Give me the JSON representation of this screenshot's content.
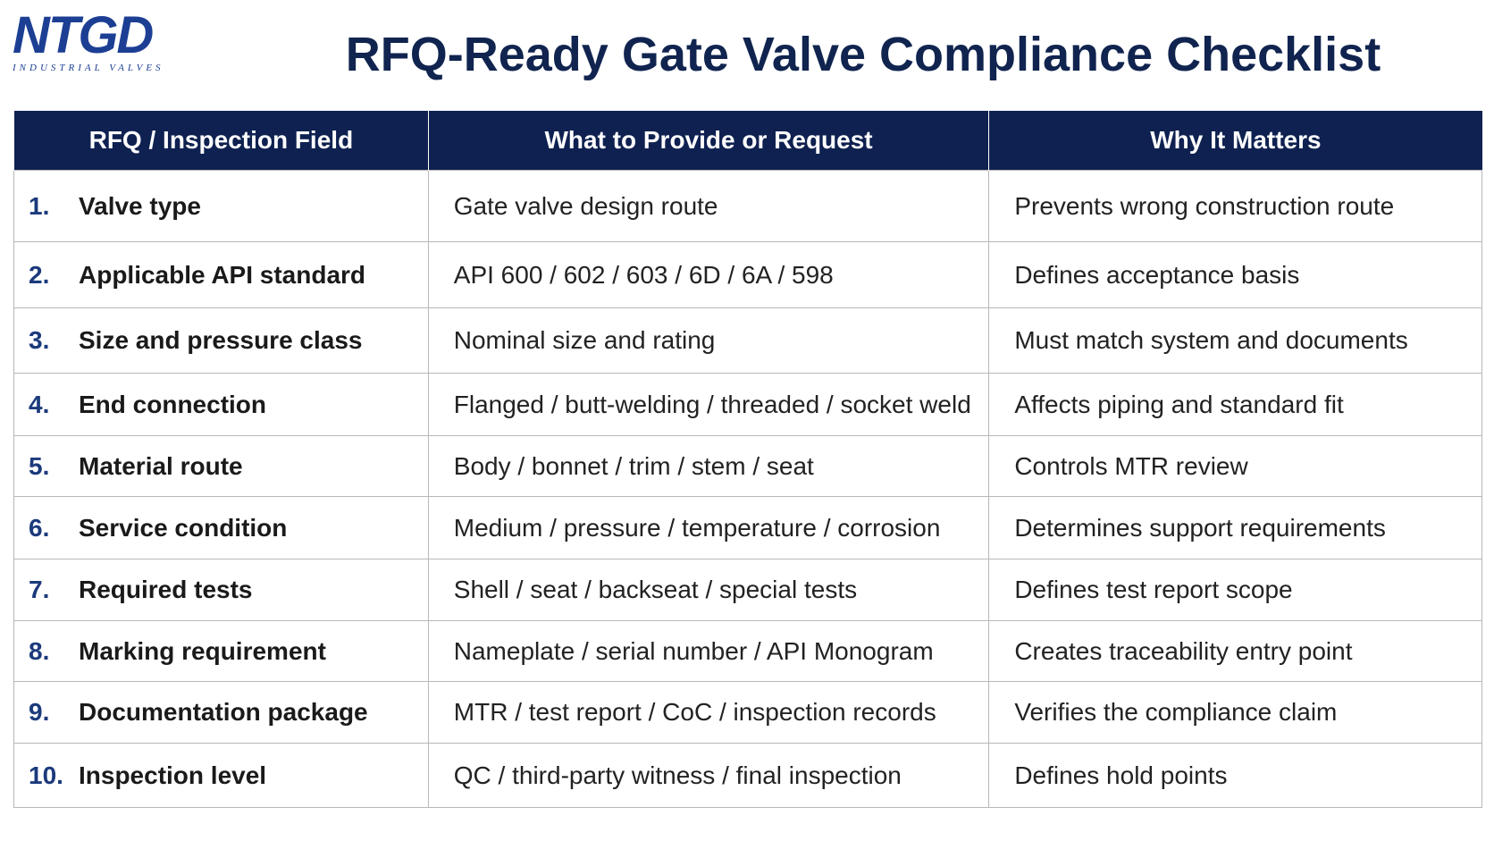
{
  "header": {
    "logo": "NTGD",
    "logo_tagline": "INDUSTRIAL VALVES",
    "title": "RFQ-Ready Gate Valve Compliance Checklist"
  },
  "table": {
    "columns": [
      "RFQ / Inspection Field",
      "What to Provide or Request",
      "Why It Matters"
    ],
    "rows": [
      [
        "1.",
        "Valve type",
        "Gate valve design route",
        "Prevents wrong construction route"
      ],
      [
        "2.",
        "Applicable API standard",
        "API 600 / 602 / 603 / 6D / 6A / 598",
        "Defines acceptance basis"
      ],
      [
        "3.",
        "Size and pressure class",
        "Nominal size and rating",
        "Must match system and documents"
      ],
      [
        "4.",
        "End connection",
        "Flanged / butt-welding / threaded / socket weld",
        "Affects piping and standard fit"
      ],
      [
        "5.",
        "Material route",
        "Body / bonnet / trim / stem / seat",
        "Controls MTR review"
      ],
      [
        "6.",
        "Service condition",
        "Medium / pressure / temperature / corrosion",
        "Determines support requirements"
      ],
      [
        "7.",
        "Required tests",
        "Shell / seat / backseat / special tests",
        "Defines test report scope"
      ],
      [
        "8.",
        "Marking requirement",
        "Nameplate / serial number / API Monogram",
        "Creates traceability entry point"
      ],
      [
        "9.",
        "Documentation package",
        "MTR / test report / CoC / inspection records",
        "Verifies the compliance claim"
      ],
      [
        "10.",
        "Inspection level",
        "QC / third-party witness / final inspection",
        "Defines hold points"
      ]
    ]
  }
}
